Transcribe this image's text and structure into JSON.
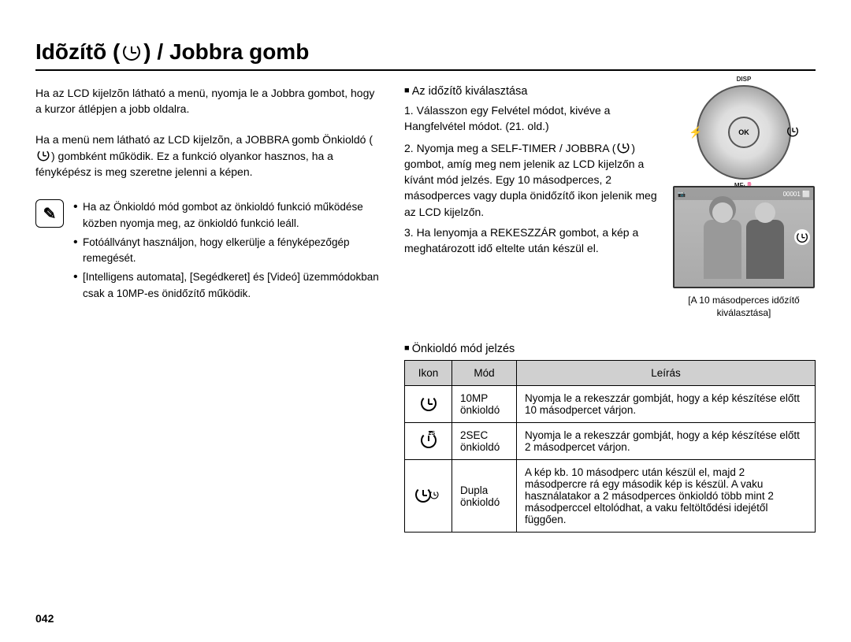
{
  "title_prefix": "Idõzítõ (",
  "title_suffix": ") / Jobbra gomb",
  "para1": "Ha az LCD kijelzõn látható a menü, nyomja le a Jobbra gombot, hogy a kurzor átlépjen a jobb oldalra.",
  "para2a": "Ha a menü nem látható az LCD kijelzõn, a JOBBRA gomb Önkioldó (",
  "para2b": ") gombként működik. Ez a funkció olyankor hasznos, ha a fényképész is meg szeretne jelenni a képen.",
  "notes": [
    "Ha az Önkioldó mód gombot az önkioldó funkció működése közben nyomja meg, az önkioldó funkció leáll.",
    "Fotóállványt használjon, hogy elkerülje a fényképezőgép remegését.",
    "[Intelligens automata], [Segédkeret] és [Videó] üzemmódokban csak a 10MP-es önidőzítő működik."
  ],
  "section_select": "Az időzítõ kiválasztása",
  "steps": {
    "s1": "1. Válasszon egy Felvétel módot, kivéve a Hangfelvétel módot. (21. old.)",
    "s2a": "2. Nyomja meg a SELF-TIMER / JOBBRA (",
    "s2b": ") gombot, amíg meg nem jelenik az LCD kijelzőn a kívánt mód jelzés. Egy 10 másodperces, 2 másodperces vagy dupla önidőzítő ikon jelenik meg az LCD kijelzőn.",
    "s3": "3. Ha lenyomja a REKESZZÁR gombot, a kép a meghatározott idő eltelte után készül el."
  },
  "dial": {
    "top": "DISP",
    "bottom": "MF·",
    "ok": "OK"
  },
  "caption": "[A 10 másodperces időzítő kiválasztása]",
  "section_mode": "Önkioldó mód jelzés",
  "table": {
    "headers": {
      "icon": "Ikon",
      "mode": "Mód",
      "desc": "Leírás"
    },
    "rows": [
      {
        "icon": "10s",
        "mode": "10MP önkioldó",
        "desc": "Nyomja le a rekeszzár gombját, hogy a kép készítése előtt 10 másodpercet várjon."
      },
      {
        "icon": "2s",
        "mode": "2SEC önkioldó",
        "desc": "Nyomja le a rekeszzár gombját, hogy a kép készítése előtt 2 másodpercet várjon."
      },
      {
        "icon": "dbl",
        "mode": "Dupla önkioldó",
        "desc": "A kép kb. 10 másodperc után készül el, majd 2 másodpercre rá egy második kép is készül. A vaku használatakor a 2 másodperces önkioldó több mint 2 másodperccel eltolódhat, a vaku feltöltődési idejétől függően."
      }
    ]
  },
  "page": "042",
  "colors": {
    "header_bg": "#d0d0d0",
    "border": "#000000",
    "text": "#000000"
  }
}
